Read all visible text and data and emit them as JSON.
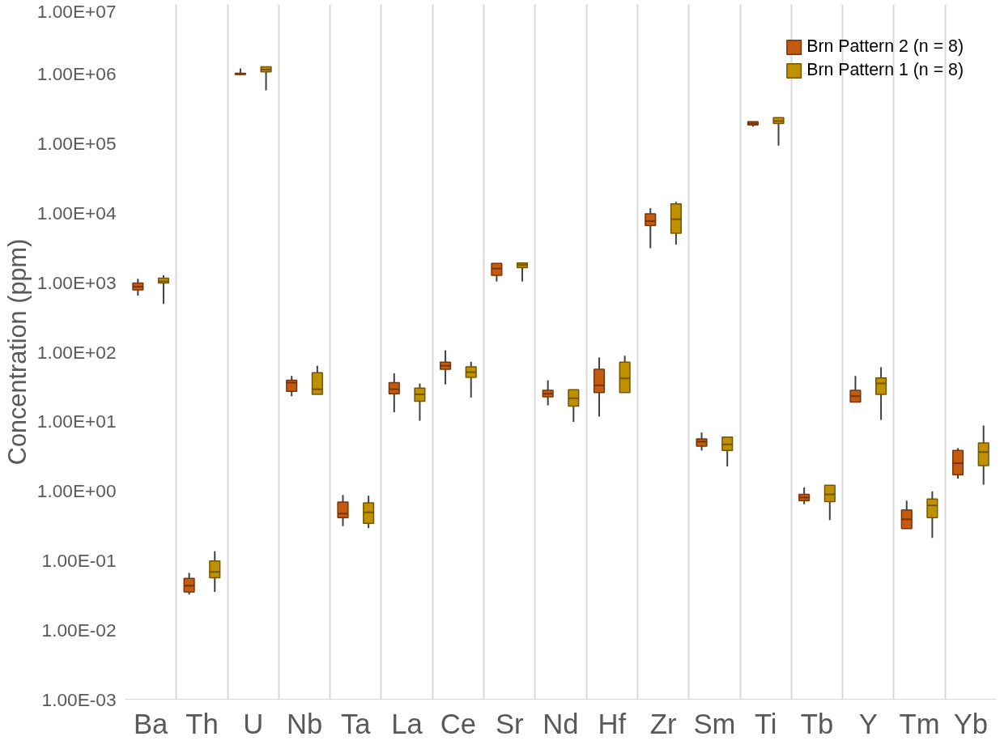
{
  "chart_data": {
    "type": "box",
    "ylabel": "Concentration (ppm)",
    "log": "y",
    "grid": "x",
    "legend": "top right",
    "categories": [
      "Ba",
      "Th",
      "U",
      "Nb",
      "Ta",
      "La",
      "Ce",
      "Sr",
      "Nd",
      "Hf",
      "Zr",
      "Sm",
      "Ti",
      "Tb",
      "Y",
      "Tm",
      "Yb"
    ],
    "ylim": [
      0.001,
      10000000
    ],
    "yticks": [
      {
        "value": 0.001,
        "label": "1.00E-03"
      },
      {
        "value": 0.01,
        "label": "1.00E-02"
      },
      {
        "value": 0.1,
        "label": "1.00E-01"
      },
      {
        "value": 1,
        "label": "1.00E+00"
      },
      {
        "value": 10,
        "label": "1.00E+01"
      },
      {
        "value": 100,
        "label": "1.00E+02"
      },
      {
        "value": 1000,
        "label": "1.00E+03"
      },
      {
        "value": 10000,
        "label": "1.00E+04"
      },
      {
        "value": 100000,
        "label": "1.00E+05"
      },
      {
        "value": 1000000,
        "label": "1.00E+06"
      },
      {
        "value": 10000000,
        "label": "1.00E+07"
      }
    ],
    "series": [
      {
        "name": "Brn Pattern 2 (n = 8)",
        "color": "#c55a11",
        "boxes": [
          {
            "low": 645,
            "q1": 780,
            "median": 870,
            "q3": 980,
            "high": 1130
          },
          {
            "low": 0.032,
            "q1": 0.035,
            "median": 0.043,
            "q3": 0.055,
            "high": 0.066
          },
          {
            "low": 960000,
            "q1": 980000,
            "median": 1000000,
            "q3": 1020000,
            "high": 1200000
          },
          {
            "low": 23,
            "q1": 27,
            "median": 36,
            "q3": 39,
            "high": 45
          },
          {
            "low": 0.31,
            "q1": 0.41,
            "median": 0.47,
            "q3": 0.69,
            "high": 0.87
          },
          {
            "low": 13.5,
            "q1": 25,
            "median": 29,
            "q3": 36,
            "high": 49
          },
          {
            "low": 34,
            "q1": 56,
            "median": 63,
            "q3": 71,
            "high": 105
          },
          {
            "low": 1030,
            "q1": 1260,
            "median": 1580,
            "q3": 1880,
            "high": 1880
          },
          {
            "low": 17,
            "q1": 22.5,
            "median": 25,
            "q3": 28,
            "high": 39
          },
          {
            "low": 11.7,
            "q1": 26,
            "median": 33,
            "q3": 56,
            "high": 83
          },
          {
            "low": 3100,
            "q1": 6600,
            "median": 7600,
            "q3": 9700,
            "high": 11700
          },
          {
            "low": 3.8,
            "q1": 4.4,
            "median": 5.1,
            "q3": 5.6,
            "high": 6.9
          },
          {
            "low": 175000,
            "q1": 185000,
            "median": 193000,
            "q3": 205000,
            "high": 205000
          },
          {
            "low": 0.64,
            "q1": 0.72,
            "median": 0.8,
            "q3": 0.89,
            "high": 1.12
          },
          {
            "low": 19,
            "q1": 19,
            "median": 23,
            "q3": 28,
            "high": 45
          },
          {
            "low": 0.285,
            "q1": 0.285,
            "median": 0.39,
            "q3": 0.53,
            "high": 0.72
          },
          {
            "low": 1.5,
            "q1": 1.7,
            "median": 2.5,
            "q3": 3.8,
            "high": 4.1
          }
        ]
      },
      {
        "name": "Brn Pattern 1 (n = 8)",
        "color": "#bf9000",
        "boxes": [
          {
            "low": 490,
            "q1": 980,
            "median": 1030,
            "q3": 1150,
            "high": 1260
          },
          {
            "low": 0.035,
            "q1": 0.056,
            "median": 0.068,
            "q3": 0.098,
            "high": 0.135
          },
          {
            "low": 580000,
            "q1": 1070000,
            "median": 1150000,
            "q3": 1270000,
            "high": 1270000
          },
          {
            "low": 24.5,
            "q1": 24.5,
            "median": 29,
            "q3": 50,
            "high": 63
          },
          {
            "low": 0.29,
            "q1": 0.34,
            "median": 0.49,
            "q3": 0.67,
            "high": 0.85
          },
          {
            "low": 10.2,
            "q1": 19.5,
            "median": 24.5,
            "q3": 30,
            "high": 35
          },
          {
            "low": 22,
            "q1": 43,
            "median": 51,
            "q3": 61,
            "high": 72
          },
          {
            "low": 1030,
            "q1": 1630,
            "median": 1780,
            "q3": 1900,
            "high": 1900
          },
          {
            "low": 9.8,
            "q1": 16.6,
            "median": 21.5,
            "q3": 28.5,
            "high": 28.5
          },
          {
            "low": 26,
            "q1": 26,
            "median": 41.5,
            "q3": 71,
            "high": 88
          },
          {
            "low": 3500,
            "q1": 5100,
            "median": 8100,
            "q3": 13500,
            "high": 14400
          },
          {
            "low": 2.25,
            "q1": 3.8,
            "median": 4.65,
            "q3": 5.95,
            "high": 5.95
          },
          {
            "low": 93000,
            "q1": 194000,
            "median": 210000,
            "q3": 235000,
            "high": 235000
          },
          {
            "low": 0.38,
            "q1": 0.7,
            "median": 0.89,
            "q3": 1.2,
            "high": 1.2
          },
          {
            "low": 10.5,
            "q1": 24.5,
            "median": 35,
            "q3": 42,
            "high": 60
          },
          {
            "low": 0.21,
            "q1": 0.41,
            "median": 0.62,
            "q3": 0.76,
            "high": 0.98
          },
          {
            "low": 1.23,
            "q1": 2.3,
            "median": 3.6,
            "q3": 4.9,
            "high": 8.7
          }
        ]
      }
    ]
  }
}
